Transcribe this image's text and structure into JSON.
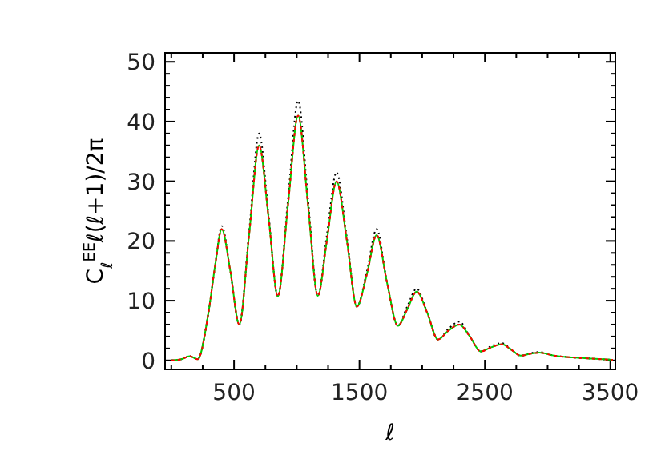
{
  "chart_data": {
    "type": "line",
    "xlabel": "ℓ",
    "ylabel": "C$_{ℓ}$$^{EE}$ℓ(ℓ+1)/2π",
    "x": [
      0,
      80,
      146,
      210,
      296,
      350,
      402,
      470,
      542,
      620,
      700,
      775,
      849,
      930,
      1011,
      1090,
      1168,
      1240,
      1317,
      1400,
      1479,
      1560,
      1637,
      1720,
      1806,
      1880,
      1956,
      2040,
      2126,
      2210,
      2297,
      2380,
      2467,
      2550,
      2636,
      2710,
      2786,
      2860,
      2934,
      3050,
      3200,
      3350,
      3520
    ],
    "series": [
      {
        "color": "#000000",
        "line_style": "dotted",
        "values": [
          0,
          0.2,
          0.7,
          0.2,
          8,
          16,
          22.5,
          15,
          6,
          21.5,
          38,
          24.5,
          10.7,
          27,
          43.5,
          27,
          10.8,
          21,
          31.5,
          20.5,
          9,
          15,
          22,
          13,
          5.8,
          9,
          12,
          8,
          3.5,
          5.3,
          6.5,
          4,
          1.5,
          2.4,
          2.9,
          1.8,
          0.8,
          1.2,
          1.4,
          0.8,
          0.5,
          0.3,
          0.1
        ]
      },
      {
        "color": "#00cc00",
        "line_style": "solid",
        "values": [
          0,
          0.2,
          0.7,
          0.2,
          8,
          16,
          22,
          15,
          6,
          21,
          36,
          24,
          10.7,
          26,
          41,
          26,
          10.8,
          20,
          30,
          20,
          9,
          14.5,
          21,
          13,
          5.8,
          8.5,
          11.5,
          8,
          3.5,
          5,
          6,
          4,
          1.5,
          2.2,
          2.7,
          1.8,
          0.8,
          1.1,
          1.3,
          0.8,
          0.5,
          0.3,
          0.1
        ]
      },
      {
        "color": "#ff0000",
        "line_style": "dashed",
        "values": [
          0,
          0.2,
          0.7,
          0.2,
          8,
          16,
          22,
          15,
          6,
          21,
          36,
          24,
          10.7,
          26,
          41,
          26,
          10.8,
          20,
          30,
          20,
          9,
          14.5,
          21,
          13,
          5.8,
          8.5,
          11.5,
          8,
          3.5,
          5,
          6,
          4,
          1.5,
          2.2,
          2.7,
          1.8,
          0.8,
          1.1,
          1.3,
          0.8,
          0.5,
          0.3,
          0.1
        ]
      }
    ],
    "xlim": [
      -50,
      3540
    ],
    "xticks": [
      {
        "value": 0,
        "label": null
      },
      {
        "value": 250,
        "label": null
      },
      500,
      {
        "value": 750,
        "label": null
      },
      {
        "value": 1000,
        "label": null
      },
      {
        "value": 1250,
        "label": null
      },
      1500,
      {
        "value": 1750,
        "label": null
      },
      {
        "value": 2000,
        "label": null
      },
      {
        "value": 2250,
        "label": null
      },
      2500,
      {
        "value": 2750,
        "label": null
      },
      {
        "value": 3000,
        "label": null
      },
      {
        "value": 3250,
        "label": null
      },
      3500
    ],
    "ylim": [
      -1.5,
      51.5
    ],
    "yticks": [
      0,
      {
        "value": 2,
        "label": null
      },
      {
        "value": 4,
        "label": null
      },
      {
        "value": 6,
        "label": null
      },
      {
        "value": 8,
        "label": null
      },
      10,
      {
        "value": 12,
        "label": null
      },
      {
        "value": 14,
        "label": null
      },
      {
        "value": 16,
        "label": null
      },
      {
        "value": 18,
        "label": null
      },
      20,
      {
        "value": 22,
        "label": null
      },
      {
        "value": 24,
        "label": null
      },
      {
        "value": 26,
        "label": null
      },
      {
        "value": 28,
        "label": null
      },
      30,
      {
        "value": 32,
        "label": null
      },
      {
        "value": 34,
        "label": null
      },
      {
        "value": 36,
        "label": null
      },
      {
        "value": 38,
        "label": null
      },
      40,
      {
        "value": 42,
        "label": null
      },
      {
        "value": 44,
        "label": null
      },
      {
        "value": 46,
        "label": null
      },
      {
        "value": 48,
        "label": null
      },
      50
    ],
    "grid": false,
    "marker": "none"
  }
}
